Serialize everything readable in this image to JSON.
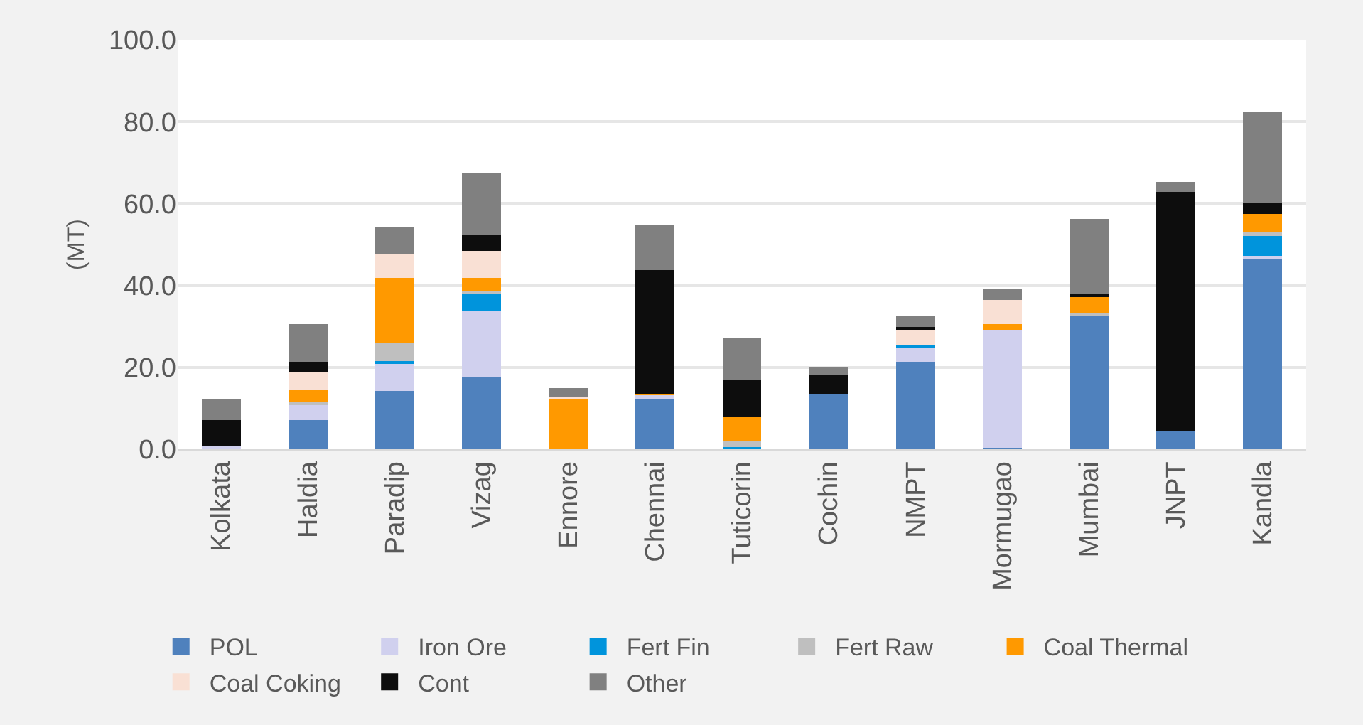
{
  "chart_data": {
    "type": "bar",
    "stacked": true,
    "ylabel": "(MT)",
    "categories": [
      "Kolkata",
      "Haldia",
      "Paradip",
      "Vizag",
      "Ennore",
      "Chennai",
      "Tuticorin",
      "Cochin",
      "NMPT",
      "Mormugao",
      "Mumbai",
      "JNPT",
      "Kandla"
    ],
    "series": [
      {
        "name": "POL",
        "color": "#4f81bd",
        "values": [
          0,
          7.1,
          14.2,
          17.6,
          0,
          12.3,
          0,
          13.6,
          21.4,
          0.3,
          32.7,
          4.3,
          46.5
        ]
      },
      {
        "name": "Iron Ore",
        "color": "#d0d0ee",
        "values": [
          0.8,
          3.9,
          6.6,
          16.3,
          0,
          0.9,
          null,
          0,
          3.5,
          28.9,
          0,
          0,
          0.7
        ]
      },
      {
        "name": "Fert Fin",
        "color": "#0094dc",
        "values": [
          0,
          0,
          0.8,
          4.0,
          0,
          0,
          0.6,
          0,
          0.4,
          0,
          0,
          0,
          5.2
        ]
      },
      {
        "name": "Fert Raw",
        "color": "#bfbfbf",
        "values": [
          0,
          0.6,
          4.5,
          0.7,
          0,
          null,
          1.3,
          0,
          0,
          0,
          0.7,
          0,
          0.5
        ]
      },
      {
        "name": "Coal Thermal",
        "color": "#ff9900",
        "values": [
          0,
          2.9,
          15.7,
          3.2,
          12.3,
          0.3,
          5.9,
          0,
          0,
          1.3,
          3.7,
          0,
          4.6
        ]
      },
      {
        "name": "Coal Coking",
        "color": "#f9e0d4",
        "values": [
          0,
          4.3,
          5.9,
          6.6,
          0.6,
          null,
          0,
          0,
          3.9,
          5.9,
          0,
          0,
          0
        ]
      },
      {
        "name": "Cont",
        "color": "#0d0d0d",
        "values": [
          6.3,
          2.6,
          0,
          4.0,
          0,
          30.3,
          9.2,
          4.6,
          0.7,
          0,
          0.8,
          58.6,
          2.8
        ]
      },
      {
        "name": "Other",
        "color": "#808080",
        "values": [
          5.2,
          9.1,
          6.6,
          15.0,
          2.0,
          10.9,
          10.3,
          1.9,
          2.6,
          2.7,
          18.3,
          2.4,
          22.1
        ]
      }
    ],
    "ylim": [
      0,
      100
    ],
    "yticks": [
      {
        "value": 0,
        "label": "0.0"
      },
      {
        "value": 20,
        "label": "20.0"
      },
      {
        "value": 40,
        "label": "40.0"
      },
      {
        "value": 60,
        "label": "60.0"
      },
      {
        "value": 80,
        "label": "80.0"
      },
      {
        "value": 100,
        "label": "100.0"
      }
    ],
    "grid": "y",
    "legend": "bottom"
  }
}
